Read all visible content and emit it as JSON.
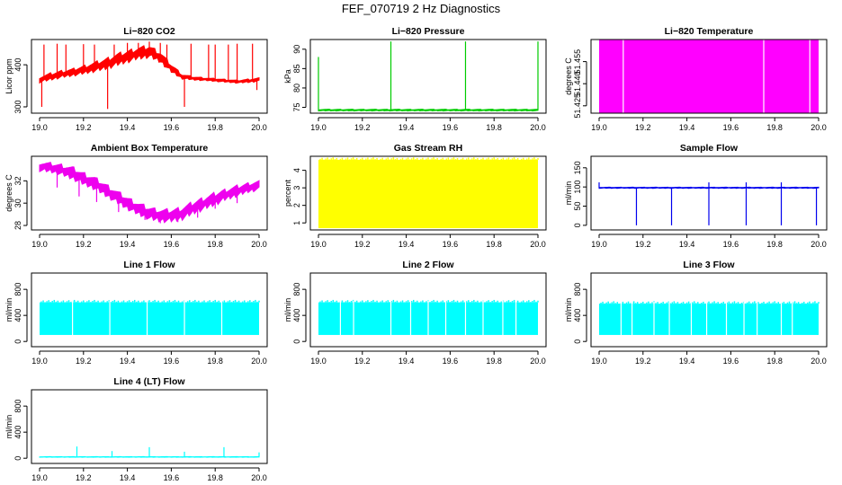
{
  "title": "FEF_070719  2 Hz Diagnostics",
  "chart_data": [
    {
      "type": "line",
      "title": "Li−820 CO2",
      "ylabel": "Licor ppm",
      "x_ticks": [
        "19.0",
        "19.2",
        "19.4",
        "19.6",
        "19.8",
        "20.0"
      ],
      "y_ticks": [
        300,
        400
      ],
      "xlim": [
        19.0,
        20.0
      ],
      "ylim": [
        285,
        460
      ],
      "color": "#ff0000",
      "series": [
        {
          "x": [
            19.0,
            19.05,
            19.1,
            19.15,
            19.2,
            19.25,
            19.3,
            19.35,
            19.4,
            19.45,
            19.5,
            19.55,
            19.6,
            19.65,
            19.7,
            19.75,
            19.8,
            19.85,
            19.9,
            19.95,
            20.0
          ],
          "y": [
            365,
            372,
            378,
            382,
            388,
            395,
            402,
            412,
            420,
            428,
            432,
            418,
            392,
            372,
            368,
            366,
            364,
            362,
            360,
            362,
            365
          ],
          "band": [
            10,
            12,
            12,
            12,
            14,
            16,
            18,
            20,
            20,
            20,
            20,
            18,
            14,
            8,
            6,
            5,
            5,
            5,
            5,
            6,
            6
          ],
          "spikes": [
            [
              19.02,
              448
            ],
            [
              19.08,
              450
            ],
            [
              19.12,
              448
            ],
            [
              19.2,
              449
            ],
            [
              19.25,
              448
            ],
            [
              19.34,
              448
            ],
            [
              19.4,
              452
            ],
            [
              19.45,
              452
            ],
            [
              19.5,
              455
            ],
            [
              19.55,
              452
            ],
            [
              19.58,
              448
            ],
            [
              19.69,
              450
            ],
            [
              19.77,
              448
            ],
            [
              19.8,
              448
            ],
            [
              19.86,
              448
            ],
            [
              19.9,
              450
            ],
            [
              19.97,
              450
            ],
            [
              19.01,
              300
            ],
            [
              19.31,
              295
            ],
            [
              19.66,
              300
            ],
            [
              19.99,
              340
            ]
          ]
        }
      ]
    },
    {
      "type": "line",
      "title": "Li−820 Pressure",
      "ylabel": "kPa",
      "x_ticks": [
        "19.0",
        "19.2",
        "19.4",
        "19.6",
        "19.8",
        "20.0"
      ],
      "y_ticks": [
        75,
        80,
        85,
        90
      ],
      "xlim": [
        19.0,
        20.0
      ],
      "ylim": [
        73.5,
        92.5
      ],
      "color": "#00cc00",
      "series": [
        {
          "x": [
            19.0,
            20.0
          ],
          "y": [
            74.3,
            74.3
          ],
          "band": [
            0.3,
            0.3
          ],
          "spikes": [
            [
              19.0,
              88
            ],
            [
              19.33,
              92
            ],
            [
              19.67,
              92
            ],
            [
              20.0,
              92
            ]
          ]
        }
      ]
    },
    {
      "type": "area",
      "title": "Li−820 Temperature",
      "ylabel": "degrees C",
      "x_ticks": [
        "19.0",
        "19.2",
        "19.4",
        "19.6",
        "19.8",
        "20.0"
      ],
      "y_ticks": [
        51.425,
        51.44,
        51.455
      ],
      "y_tick_labels": [
        "51.425",
        "51.440",
        "51.455"
      ],
      "xlim": [
        19.0,
        20.0
      ],
      "ylim": [
        51.42,
        51.47
      ],
      "color": "#ff00ff",
      "fill_range": [
        51.42,
        51.47
      ],
      "gaps": [
        19.11,
        19.75,
        19.96
      ]
    },
    {
      "type": "line",
      "title": "Ambient Box Temperature",
      "ylabel": "degrees C",
      "x_ticks": [
        "19.0",
        "19.2",
        "19.4",
        "19.6",
        "19.8",
        "20.0"
      ],
      "y_ticks": [
        28,
        30,
        32
      ],
      "xlim": [
        19.0,
        20.0
      ],
      "ylim": [
        27.6,
        34.2
      ],
      "color": "#ee00ee",
      "series": [
        {
          "x": [
            19.0,
            19.05,
            19.1,
            19.15,
            19.2,
            19.25,
            19.3,
            19.35,
            19.4,
            19.45,
            19.5,
            19.55,
            19.6,
            19.65,
            19.7,
            19.75,
            19.8,
            19.85,
            19.9,
            19.95,
            20.0
          ],
          "y": [
            33.3,
            33.2,
            33.0,
            32.7,
            32.2,
            31.8,
            31.2,
            30.6,
            30.0,
            29.5,
            29.1,
            28.9,
            28.9,
            29.1,
            29.6,
            30.0,
            30.4,
            30.8,
            31.1,
            31.4,
            31.6
          ],
          "band": [
            0.6,
            0.6,
            0.7,
            0.8,
            0.8,
            0.8,
            0.8,
            0.8,
            0.8,
            0.8,
            0.8,
            0.8,
            0.8,
            0.8,
            0.8,
            0.8,
            0.8,
            0.7,
            0.7,
            0.6,
            0.6
          ],
          "spikes": [
            [
              19.08,
              31.4
            ],
            [
              19.18,
              30.6
            ],
            [
              19.26,
              30.1
            ],
            [
              19.36,
              29.2
            ],
            [
              19.48,
              28.5
            ],
            [
              19.55,
              28.2
            ],
            [
              19.63,
              28.3
            ],
            [
              19.72,
              28.7
            ],
            [
              19.8,
              29.5
            ],
            [
              19.9,
              30.0
            ]
          ]
        }
      ]
    },
    {
      "type": "area",
      "title": "Gas Stream RH",
      "ylabel": "percent",
      "x_ticks": [
        "19.0",
        "19.2",
        "19.4",
        "19.6",
        "19.8",
        "20.0"
      ],
      "y_ticks": [
        1,
        2,
        3,
        4
      ],
      "xlim": [
        19.0,
        20.0
      ],
      "ylim": [
        0.6,
        4.8
      ],
      "color": "#ffff00",
      "fill_range": [
        0.7,
        4.6
      ],
      "gaps": []
    },
    {
      "type": "line",
      "title": "Sample Flow",
      "ylabel": "ml/min",
      "x_ticks": [
        "19.0",
        "19.2",
        "19.4",
        "19.6",
        "19.8",
        "20.0"
      ],
      "y_ticks": [
        0,
        50,
        100,
        150
      ],
      "xlim": [
        19.0,
        20.0
      ],
      "ylim": [
        -12,
        180
      ],
      "color": "#0000ee",
      "series": [
        {
          "x": [
            19.0,
            20.0
          ],
          "y": [
            98,
            98
          ],
          "band": [
            2,
            2
          ],
          "spikes": [
            [
              19.0,
              112
            ],
            [
              19.5,
              112
            ],
            [
              19.67,
              112
            ],
            [
              19.83,
              112
            ],
            [
              19.17,
              0
            ],
            [
              19.33,
              0
            ],
            [
              19.5,
              0
            ],
            [
              19.67,
              0
            ],
            [
              19.83,
              0
            ],
            [
              19.99,
              0
            ]
          ]
        }
      ]
    },
    {
      "type": "area",
      "title": "Line 1 Flow",
      "ylabel": "ml/min",
      "x_ticks": [
        "19.0",
        "19.2",
        "19.4",
        "19.6",
        "19.8",
        "20.0"
      ],
      "y_ticks": [
        0,
        400,
        800
      ],
      "xlim": [
        19.0,
        20.0
      ],
      "ylim": [
        -80,
        1050
      ],
      "color": "#00ffff",
      "fill_range": [
        100,
        600
      ],
      "gaps": [
        19.15,
        19.32,
        19.49,
        19.66,
        19.83
      ]
    },
    {
      "type": "area",
      "title": "Line 2 Flow",
      "ylabel": "ml/min",
      "x_ticks": [
        "19.0",
        "19.2",
        "19.4",
        "19.6",
        "19.8",
        "20.0"
      ],
      "y_ticks": [
        0,
        400,
        800
      ],
      "xlim": [
        19.0,
        20.0
      ],
      "ylim": [
        -80,
        1050
      ],
      "color": "#00ffff",
      "fill_range": [
        100,
        600
      ],
      "gaps": [
        19.16,
        19.33,
        19.5,
        19.67,
        19.84,
        19.1,
        19.42,
        19.58,
        19.75,
        19.9
      ]
    },
    {
      "type": "area",
      "title": "Line 3 Flow",
      "ylabel": "ml/min",
      "x_ticks": [
        "19.0",
        "19.2",
        "19.4",
        "19.6",
        "19.8",
        "20.0"
      ],
      "y_ticks": [
        0,
        400,
        800
      ],
      "xlim": [
        19.0,
        20.0
      ],
      "ylim": [
        -80,
        1050
      ],
      "color": "#00ffff",
      "fill_range": [
        100,
        580
      ],
      "gaps": [
        19.15,
        19.32,
        19.49,
        19.66,
        19.83,
        19.1,
        19.25,
        19.42,
        19.58,
        19.72,
        19.88
      ]
    },
    {
      "type": "line",
      "title": "Line 4 (LT) Flow",
      "ylabel": "ml/min",
      "x_ticks": [
        "19.0",
        "19.2",
        "19.4",
        "19.6",
        "19.8",
        "20.0"
      ],
      "y_ticks": [
        0,
        400,
        800
      ],
      "xlim": [
        19.0,
        20.0
      ],
      "ylim": [
        -80,
        1050
      ],
      "color": "#00ffff",
      "series": [
        {
          "x": [
            19.0,
            20.0
          ],
          "y": [
            20,
            20
          ],
          "band": [
            6,
            6
          ],
          "spikes": [
            [
              19.17,
              180
            ],
            [
              19.33,
              110
            ],
            [
              19.5,
              170
            ],
            [
              19.66,
              100
            ],
            [
              19.84,
              170
            ],
            [
              20.0,
              90
            ]
          ]
        }
      ]
    }
  ]
}
